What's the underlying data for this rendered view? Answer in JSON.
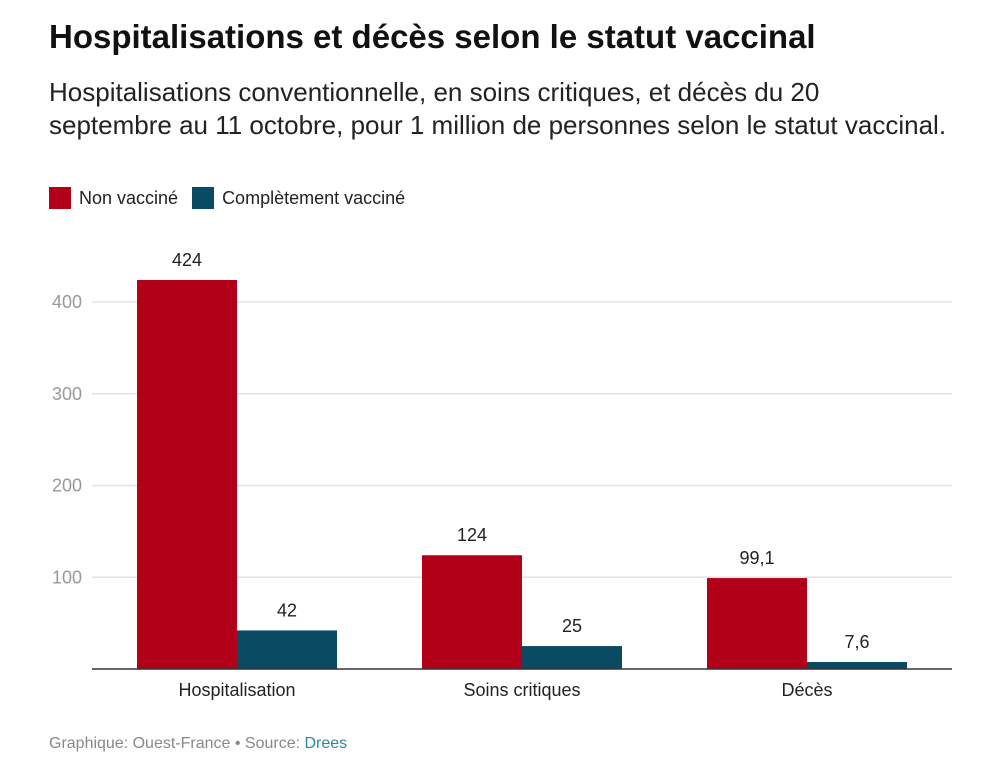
{
  "chart_data": {
    "type": "bar",
    "title": "Hospitalisations et décès selon le statut vaccinal",
    "subtitle": "Hospitalisations conventionnelle, en soins critiques, et décès du 20 septembre au 11 octobre, pour 1 million de personnes selon le statut vaccinal.",
    "categories": [
      "Hospitalisation",
      "Soins critiques",
      "Décès"
    ],
    "series": [
      {
        "name": "Non vacciné",
        "values": [
          424,
          124,
          99.1
        ],
        "labels": [
          "424",
          "124",
          "99,1"
        ],
        "color": "#b10017"
      },
      {
        "name": "Complètement vacciné",
        "values": [
          42,
          25,
          7.6
        ],
        "labels": [
          "42",
          "25",
          "7,6"
        ],
        "color": "#0b4a63"
      }
    ],
    "yticks": [
      "100",
      "200",
      "300",
      "400"
    ],
    "ylim": [
      0,
      440
    ],
    "grid": true,
    "legend": "top-left",
    "xlabel": "",
    "ylabel": ""
  },
  "footer": {
    "credit": "Graphique: Ouest-France • Source: ",
    "source": "Drees"
  }
}
